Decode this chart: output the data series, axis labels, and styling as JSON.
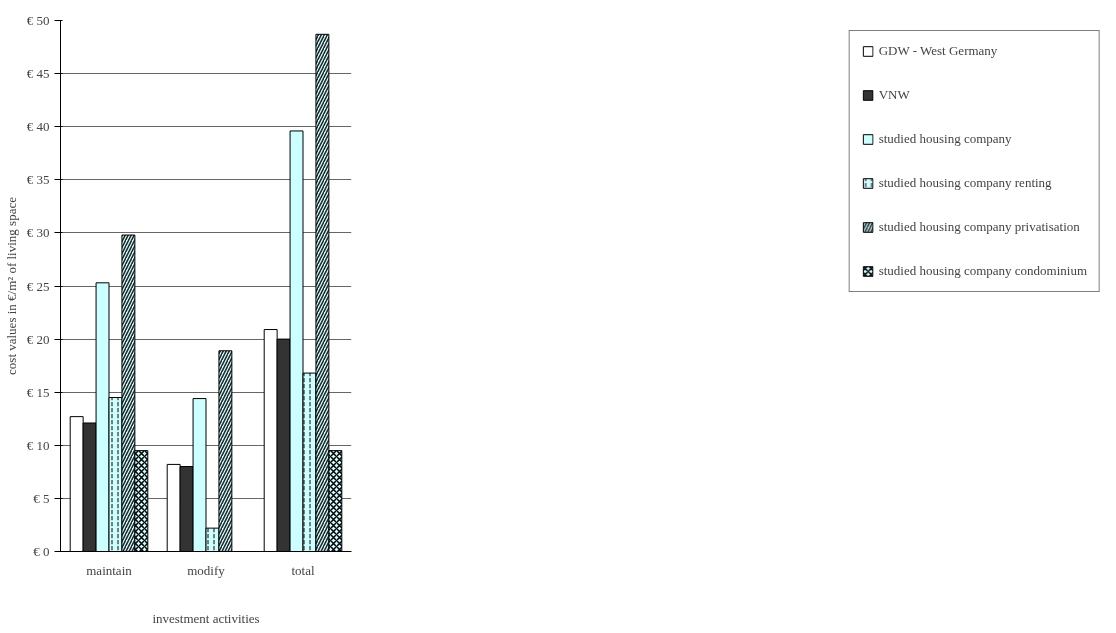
{
  "chart_data": {
    "type": "bar",
    "xlabel": "investment activities",
    "ylabel": "cost values in €/m² of living space",
    "categories": [
      "maintain",
      "modify",
      "total"
    ],
    "series": [
      {
        "name": "GDW - West Germany",
        "color": "#ffffff",
        "values": [
          12.7,
          8.2,
          20.9
        ]
      },
      {
        "name": "VNW",
        "color": "#333333",
        "values": [
          12.1,
          8.0,
          20.0
        ]
      },
      {
        "name": "studied housing company",
        "color": "#ccffff",
        "values": [
          25.3,
          14.4,
          39.6
        ]
      },
      {
        "name": "studied housing company renting",
        "color": "#ccffff",
        "values": [
          14.5,
          2.2,
          16.8
        ]
      },
      {
        "name": "studied housing company privatisation",
        "color": "#ccffff",
        "values": [
          29.8,
          18.9,
          48.7
        ]
      },
      {
        "name": "studied housing company condominium",
        "color": "#ccffff",
        "values": [
          9.5,
          null,
          9.5
        ]
      }
    ],
    "ylim": [
      0,
      50
    ],
    "yticks": [
      {
        "value": 0,
        "label": "€ 0"
      },
      {
        "value": 5,
        "label": "€ 5"
      },
      {
        "value": 10,
        "label": "€ 10"
      },
      {
        "value": 15,
        "label": "€ 15"
      },
      {
        "value": 20,
        "label": "€ 20"
      },
      {
        "value": 25,
        "label": "€ 25"
      },
      {
        "value": 30,
        "label": "€ 30"
      },
      {
        "value": 35,
        "label": "€ 35"
      },
      {
        "value": 40,
        "label": "€ 40"
      },
      {
        "value": 45,
        "label": "€ 45"
      },
      {
        "value": 50,
        "label": "€ 50"
      }
    ],
    "grid": "y",
    "legend": "right"
  }
}
